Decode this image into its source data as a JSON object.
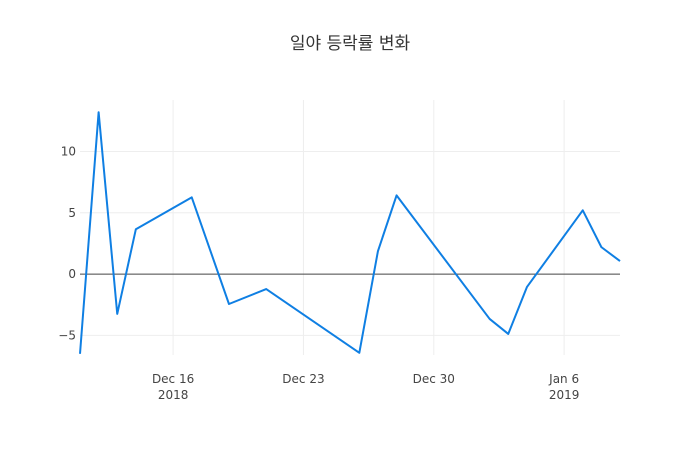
{
  "chart_data": {
    "type": "line",
    "title": "일야 등락률 변화",
    "x": [
      "2018-12-11",
      "2018-12-12",
      "2018-12-13",
      "2018-12-14",
      "2018-12-17",
      "2018-12-19",
      "2018-12-21",
      "2018-12-26",
      "2018-12-27",
      "2018-12-28",
      "2019-01-02",
      "2019-01-03",
      "2019-01-04",
      "2019-01-07",
      "2019-01-08",
      "2019-01-09"
    ],
    "series": [
      {
        "color": "#0f7fe3",
        "values": [
          -6.5,
          13.2,
          -3.25,
          3.66,
          6.26,
          -2.44,
          -1.22,
          -6.42,
          1.87,
          6.42,
          -3.66,
          -4.88,
          -1.06,
          5.2,
          2.2,
          1.06
        ]
      }
    ],
    "xlim": [
      "2018-12-11",
      "2019-01-09"
    ],
    "xticks": [
      {
        "value": "2018-12-16",
        "label": "Dec 16\n2018"
      },
      {
        "value": "2018-12-23",
        "label": "Dec 23"
      },
      {
        "value": "2018-12-30",
        "label": "Dec 30"
      },
      {
        "value": "2019-01-06",
        "label": "Jan 6\n2019"
      }
    ],
    "ylim": [
      -6.6,
      14.2
    ],
    "yticks": [
      {
        "value": -5,
        "label": "−5"
      },
      0,
      5,
      10
    ],
    "grid": true,
    "zero_line": true
  }
}
